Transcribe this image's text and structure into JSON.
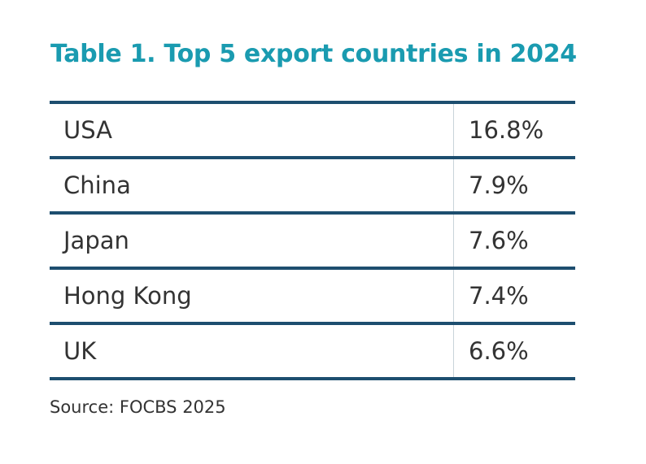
{
  "title": "Table 1. Top 5 export countries in 2024",
  "rows": [
    {
      "country": "USA",
      "share": "16.8%"
    },
    {
      "country": "China",
      "share": "7.9%"
    },
    {
      "country": "Japan",
      "share": "7.6%"
    },
    {
      "country": "Hong Kong",
      "share": "7.4%"
    },
    {
      "country": "UK",
      "share": "6.6%"
    }
  ],
  "source": "Source: FOCBS 2025",
  "colors": {
    "title": "#1a9bb0",
    "rule": "#1d4e6f",
    "text": "#333333"
  }
}
